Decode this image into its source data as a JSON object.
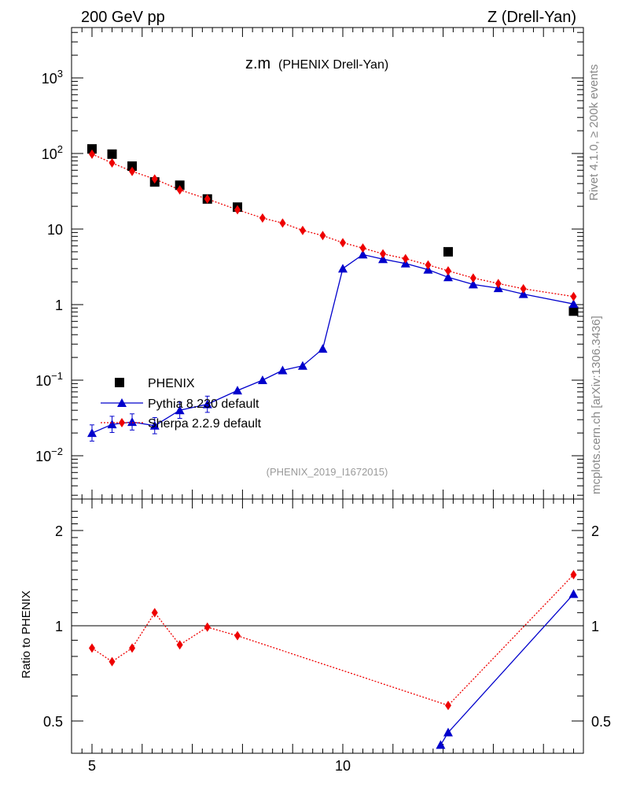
{
  "header": {
    "left": "200 GeV pp",
    "right": "Z (Drell-Yan)"
  },
  "plot_title": {
    "main": "z.m",
    "sub": "(PHENIX Drell-Yan)"
  },
  "side_labels": {
    "rivet": "Rivet 4.1.0, ≥ 200k events",
    "mcplots": "mcplots.cern.ch [arXiv:1306.3436]"
  },
  "analysis_id": "(PHENIX_2019_I1672015)",
  "ratio_ylabel": "Ratio to PHENIX",
  "colors": {
    "data": "#000000",
    "pythia": "#0000cc",
    "sherpa": "#ee0000"
  },
  "chart_data": [
    {
      "type": "scatter",
      "title": "z.m",
      "xlabel": "",
      "ylabel": "",
      "yscale": "log",
      "xlim": [
        4.55,
        15.0
      ],
      "ylim": [
        0.003,
        5000
      ],
      "x_ticks": [
        "5",
        "10"
      ],
      "y_ticks": [
        "10^-2",
        "10^-1",
        "1",
        "10",
        "10^2",
        "10^3"
      ],
      "legend": {
        "position": "lower-left",
        "entries": [
          "PHENIX",
          "Pythia 8.230 default",
          "Sherpa 2.2.9 default"
        ]
      },
      "series": [
        {
          "name": "PHENIX",
          "marker": "square",
          "points": [
            [
              5.0,
              115
            ],
            [
              5.4,
              98
            ],
            [
              5.8,
              68
            ],
            [
              6.25,
              42
            ],
            [
              6.75,
              38
            ],
            [
              7.3,
              25
            ],
            [
              7.9,
              19.5
            ],
            [
              12.1,
              5.0
            ],
            [
              14.6,
              0.82
            ]
          ]
        },
        {
          "name": "Pythia 8.230 default",
          "marker": "triangle",
          "points": [
            [
              5.0,
              0.02
            ],
            [
              5.4,
              0.026
            ],
            [
              5.8,
              0.028
            ],
            [
              6.25,
              0.025
            ],
            [
              6.75,
              0.04
            ],
            [
              7.3,
              0.048
            ],
            [
              7.9,
              0.073
            ],
            [
              8.4,
              0.1
            ],
            [
              8.8,
              0.135
            ],
            [
              9.2,
              0.155
            ],
            [
              9.6,
              0.26
            ],
            [
              10.0,
              3.0
            ],
            [
              10.4,
              4.6
            ],
            [
              10.8,
              4.0
            ],
            [
              11.25,
              3.5
            ],
            [
              11.7,
              2.9
            ],
            [
              12.1,
              2.3
            ],
            [
              12.6,
              1.85
            ],
            [
              13.1,
              1.65
            ],
            [
              13.6,
              1.38
            ],
            [
              14.6,
              1.02
            ]
          ]
        },
        {
          "name": "Sherpa 2.2.9 default",
          "marker": "diamond",
          "points": [
            [
              5.0,
              98
            ],
            [
              5.4,
              75
            ],
            [
              5.8,
              58
            ],
            [
              6.25,
              46
            ],
            [
              6.75,
              33
            ],
            [
              7.3,
              25
            ],
            [
              7.9,
              18
            ],
            [
              8.4,
              14
            ],
            [
              8.8,
              12
            ],
            [
              9.2,
              9.6
            ],
            [
              9.6,
              8.2
            ],
            [
              10.0,
              6.6
            ],
            [
              10.4,
              5.6
            ],
            [
              10.8,
              4.7
            ],
            [
              11.25,
              4.05
            ],
            [
              11.7,
              3.35
            ],
            [
              12.1,
              2.8
            ],
            [
              12.6,
              2.25
            ],
            [
              13.1,
              1.9
            ],
            [
              13.6,
              1.62
            ],
            [
              14.6,
              1.28
            ]
          ]
        }
      ]
    },
    {
      "type": "line",
      "title": "Ratio to PHENIX",
      "ylabel": "Ratio to PHENIX",
      "yscale": "log",
      "xlim": [
        4.55,
        15.0
      ],
      "ylim": [
        0.42,
        2.35
      ],
      "x_ticks": [
        "5",
        "10"
      ],
      "y_ticks": [
        "0.5",
        "1",
        "2"
      ],
      "reference_line": 1,
      "series": [
        {
          "name": "Pythia 8.230 default",
          "points": [
            [
              11.95,
              0.42
            ],
            [
              12.1,
              0.46
            ],
            [
              14.6,
              1.26
            ]
          ]
        },
        {
          "name": "Sherpa 2.2.9 default",
          "points": [
            [
              5.0,
              0.85
            ],
            [
              5.4,
              0.77
            ],
            [
              5.8,
              0.85
            ],
            [
              6.25,
              1.1
            ],
            [
              6.75,
              0.87
            ],
            [
              7.3,
              0.99
            ],
            [
              7.9,
              0.93
            ],
            [
              12.1,
              0.56
            ],
            [
              14.6,
              1.45
            ]
          ]
        }
      ]
    }
  ]
}
